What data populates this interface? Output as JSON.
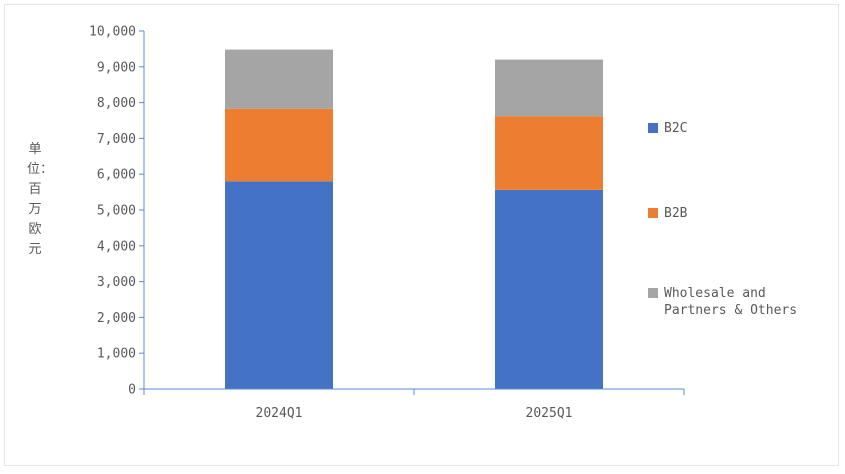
{
  "chart_data": {
    "type": "bar",
    "stacked": true,
    "categories": [
      "2024Q1",
      "2025Q1"
    ],
    "series": [
      {
        "name": "B2C",
        "values": [
          5800,
          5560
        ],
        "color": "#4472c4"
      },
      {
        "name": "B2B",
        "values": [
          2030,
          2060
        ],
        "color": "#ed7d31"
      },
      {
        "name": "Wholesale and Partners & Others",
        "values": [
          1650,
          1580
        ],
        "color": "#a5a5a5"
      }
    ],
    "ylabel": "单位：百万欧元",
    "ylim": [
      0,
      10000
    ],
    "yticks": [
      "0",
      "1,000",
      "2,000",
      "3,000",
      "4,000",
      "5,000",
      "6,000",
      "7,000",
      "8,000",
      "9,000",
      "10,000"
    ],
    "grid": false,
    "legend_position": "right"
  }
}
